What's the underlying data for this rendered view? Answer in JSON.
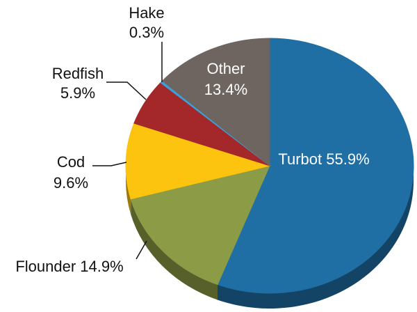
{
  "chart_data": {
    "type": "pie",
    "categories": [
      "Turbot",
      "Flounder",
      "Cod",
      "Redfish",
      "Hake",
      "Other"
    ],
    "values": [
      55.9,
      14.9,
      9.6,
      5.9,
      0.3,
      13.4
    ],
    "value_labels": [
      "55.9%",
      "14.9%",
      "9.6%",
      "5.9%",
      "0.3%",
      "13.4%"
    ],
    "colors": [
      "#1f6ea4",
      "#8c9b45",
      "#fcc30f",
      "#a4282a",
      "#3ba0d8",
      "#6e6561"
    ]
  }
}
